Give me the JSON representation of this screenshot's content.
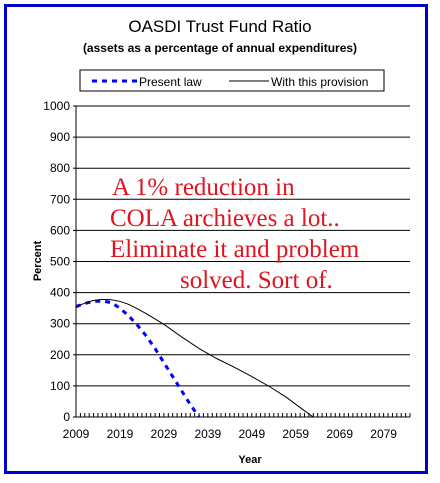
{
  "chart_data": {
    "type": "line",
    "title": "OASDI Trust Fund Ratio",
    "subtitle": "(assets as a percentage of annual expenditures)",
    "xlabel": "Year",
    "ylabel": "Percent",
    "xlim": [
      2009,
      2085
    ],
    "ylim": [
      0,
      1000
    ],
    "x_ticks": [
      "2009",
      "2019",
      "2029",
      "2039",
      "2049",
      "2059",
      "2069",
      "2079"
    ],
    "y_ticks": [
      "0",
      "100",
      "200",
      "300",
      "400",
      "500",
      "600",
      "700",
      "800",
      "900",
      "1000"
    ],
    "grid": "horizontal",
    "legend": "top",
    "series": [
      {
        "name": "Present law",
        "style": "dashed",
        "color": "#0000ff",
        "x": [
          2009,
          2011,
          2013,
          2015,
          2017,
          2019,
          2021,
          2023,
          2025,
          2027,
          2029,
          2031,
          2033,
          2035,
          2037
        ],
        "y": [
          355,
          365,
          372,
          373,
          368,
          350,
          325,
          295,
          260,
          220,
          175,
          130,
          85,
          40,
          0
        ]
      },
      {
        "name": "With this provision",
        "style": "solid",
        "color": "#000000",
        "x": [
          2009,
          2011,
          2013,
          2015,
          2017,
          2019,
          2021,
          2023,
          2025,
          2029,
          2033,
          2037,
          2041,
          2045,
          2049,
          2053,
          2057,
          2061,
          2063
        ],
        "y": [
          355,
          366,
          375,
          378,
          377,
          372,
          362,
          348,
          332,
          298,
          258,
          220,
          188,
          160,
          130,
          98,
          62,
          20,
          0
        ]
      }
    ],
    "annotation": [
      "A 1% reduction in",
      "COLA archieves a lot..",
      "Eliminate it and problem",
      "solved. Sort of."
    ],
    "colors": {
      "frame": "#0000cc",
      "annotation": "#e0141e"
    }
  }
}
